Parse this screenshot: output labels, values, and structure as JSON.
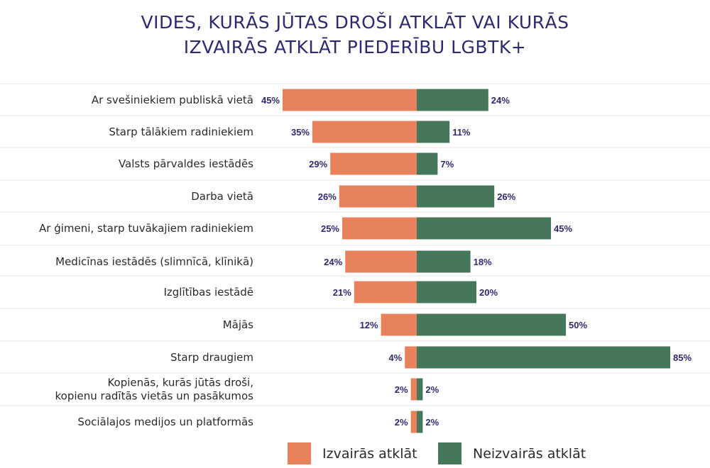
{
  "colors": {
    "title": "#2e2a6e",
    "avoid": "#e8825d",
    "not_avoid": "#45785a",
    "grid": "#e6e6e6",
    "value_text": "#2e2a6e"
  },
  "chart_data": {
    "type": "bar",
    "orientation": "horizontal-diverging",
    "title_lines": [
      "VIDES, KURĀS JŪTAS DROŠI ATKLĀT VAI KURĀS",
      "IZVAIRĀS ATKLĀT PIEDERĪBU LGBTK+"
    ],
    "categories": [
      [
        "Ar svešiniekiem publiskā vietā"
      ],
      [
        "Starp tālākiem radiniekiem"
      ],
      [
        "Valsts pārvaldes iestādēs"
      ],
      [
        "Darba vietā"
      ],
      [
        "Ar ģimeni, starp tuvākajiem radiniekiem"
      ],
      [
        "Medicīnas iestādēs (slimnīcā, klīnikā)"
      ],
      [
        "Izglītības iestādē"
      ],
      [
        "Mājās"
      ],
      [
        "Starp draugiem"
      ],
      [
        "Kopienās, kurās jūtās droši,",
        "kopienu radītās vietās un pasākumos"
      ],
      [
        "Sociālajos medijos un platformās"
      ]
    ],
    "series": [
      {
        "name": "Izvairās atklāt",
        "values": [
          45,
          35,
          29,
          26,
          25,
          24,
          21,
          12,
          4,
          2,
          2
        ],
        "labels": [
          "45%",
          "35%",
          "29%",
          "26%",
          "25%",
          "24%",
          "21%",
          "12%",
          "4%",
          "2%",
          "2%"
        ]
      },
      {
        "name": "Neizvairās atklāt",
        "values": [
          24,
          11,
          7,
          26,
          45,
          18,
          20,
          50,
          85,
          2,
          2
        ],
        "labels": [
          "24%",
          "11%",
          "7%",
          "26%",
          "45%",
          "18%",
          "20%",
          "50%",
          "85%",
          "2%",
          "2%"
        ]
      }
    ],
    "legend_position": "bottom",
    "grid": true
  },
  "legend": {
    "avoid_label": "Izvairās atklāt",
    "not_avoid_label": "Neizvairās atklāt"
  }
}
